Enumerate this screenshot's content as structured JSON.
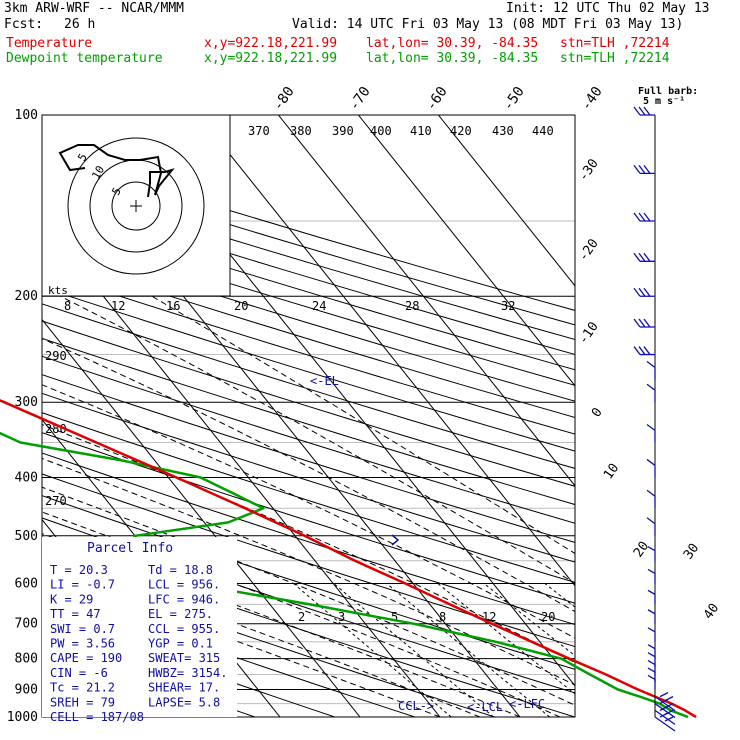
{
  "header": {
    "model": "3km ARW-WRF -- NCAR/MMM",
    "fcst_label": "Fcst:",
    "fcst_value": "26 h",
    "init": "Init: 12 UTC Thu 02 May 13",
    "valid": "Valid: 14 UTC Fri 03 May 13 (08 MDT Fri 03 May 13)",
    "rows": [
      {
        "name": "Temperature",
        "xy": "x,y=922.18,221.99",
        "latlon": "lat,lon= 30.39, -84.35",
        "stn": "stn=TLH ,72214",
        "color": "#e00000"
      },
      {
        "name": "Dewpoint temperature",
        "xy": "x,y=922.18,221.99",
        "latlon": "lat,lon= 30.39, -84.35",
        "stn": "stn=TLH ,72214",
        "color": "#00a000"
      }
    ]
  },
  "chart_data": {
    "type": "line",
    "chart_kind": "skew-T log-P sounding",
    "y_scale": "log pressure (hPa)",
    "ylim": [
      1000,
      100
    ],
    "pressure_labels": [
      "100",
      "200",
      "300",
      "400",
      "500",
      "600",
      "700",
      "800",
      "900",
      "1000"
    ],
    "isotherm_labels": [
      "-80",
      "-70",
      "-60",
      "-50",
      "-40",
      "-30",
      "-20",
      "-10",
      "0",
      "10",
      "20",
      "30",
      "40"
    ],
    "theta_labels_top": [
      "370",
      "380",
      "390",
      "400",
      "410",
      "420",
      "430",
      "440"
    ],
    "theta_labels_left": [
      "290",
      "280",
      "270"
    ],
    "mixing_ratio_labels": [
      "2",
      "3",
      "5",
      "8",
      "12",
      "20"
    ],
    "hodograph_speed_labels": [
      "kts",
      "8",
      "12",
      "16",
      "20",
      "24",
      "28",
      "32"
    ],
    "hodograph_ring_labels": [
      "5",
      "10",
      "5"
    ],
    "parcel_markers": [
      "<-EL",
      "CCL->",
      "<-LCL",
      "<-LFC"
    ],
    "series": [
      {
        "name": "Temperature",
        "color": "#e00000",
        "points": [
          [
            1000,
            22
          ],
          [
            975,
            21.3
          ],
          [
            950,
            20.3
          ],
          [
            925,
            18.9
          ],
          [
            900,
            17.5
          ],
          [
            850,
            15
          ],
          [
            800,
            12
          ],
          [
            750,
            9
          ],
          [
            700,
            5.8
          ],
          [
            650,
            2.5
          ],
          [
            600,
            -1
          ],
          [
            550,
            -5
          ],
          [
            500,
            -8.8
          ],
          [
            450,
            -13.5
          ],
          [
            400,
            -19
          ],
          [
            350,
            -25.5
          ],
          [
            300,
            -33
          ],
          [
            275,
            -37.5
          ],
          [
            250,
            -42.5
          ],
          [
            225,
            -48
          ],
          [
            200,
            -54.5
          ],
          [
            190,
            -57
          ],
          [
            175,
            -62
          ],
          [
            160,
            -66
          ],
          [
            150,
            -68.5
          ],
          [
            140,
            -71
          ],
          [
            125,
            -73
          ],
          [
            110,
            -74.5
          ],
          [
            100,
            -75.5
          ]
        ]
      },
      {
        "name": "Dewpoint temperature",
        "color": "#00a000",
        "points": [
          [
            1000,
            21
          ],
          [
            975,
            19.5
          ],
          [
            950,
            18.8
          ],
          [
            925,
            17
          ],
          [
            900,
            15
          ],
          [
            850,
            13
          ],
          [
            800,
            11
          ],
          [
            750,
            4.5
          ],
          [
            700,
            -4
          ],
          [
            650,
            -15
          ],
          [
            600,
            -28
          ],
          [
            550,
            -33.5
          ],
          [
            500,
            -30
          ],
          [
            475,
            -17
          ],
          [
            450,
            -11.2
          ],
          [
            425,
            -13.5
          ],
          [
            400,
            -16
          ],
          [
            375,
            -24
          ],
          [
            350,
            -35
          ],
          [
            300,
            -42
          ],
          [
            250,
            -52
          ],
          [
            200,
            -64
          ],
          [
            175,
            -70.5
          ],
          [
            150,
            -79
          ],
          [
            125,
            -84
          ],
          [
            110,
            -85
          ],
          [
            100,
            -85
          ]
        ]
      }
    ],
    "wind_barbs": [
      "1000",
      "975",
      "950",
      "925",
      "900",
      "875",
      "850",
      "825",
      "800",
      "750",
      "700",
      "650",
      "600",
      "550",
      "500",
      "450",
      "400",
      "350",
      "300",
      "275",
      "250",
      "225",
      "200",
      "175",
      "150",
      "125",
      "100"
    ],
    "wind_barb_legend": {
      "title": "Full barb:",
      "value": "5 m s⁻¹"
    }
  },
  "parcel_info": {
    "title": "Parcel Info",
    "rows": [
      [
        "T  =     20.3",
        "Td =  18.8"
      ],
      [
        "LI =     -0.7",
        "LCL =  956."
      ],
      [
        "K  =       29",
        "LFC =  946."
      ],
      [
        "TT =       47",
        "EL  =  275."
      ],
      [
        "SWI =     0.7",
        "CCL =  955."
      ],
      [
        "PW =     3.56",
        "YGP =   0.1"
      ],
      [
        "CAPE =    190",
        "SWEAT=  315"
      ],
      [
        "CIN =      -6",
        "HWBZ= 3154."
      ],
      [
        "Tc =     21.2",
        "SHEAR=  17."
      ],
      [
        "SREH =     79",
        "LAPSE=  5.8"
      ],
      [
        "CELL = 187/08",
        ""
      ]
    ]
  }
}
